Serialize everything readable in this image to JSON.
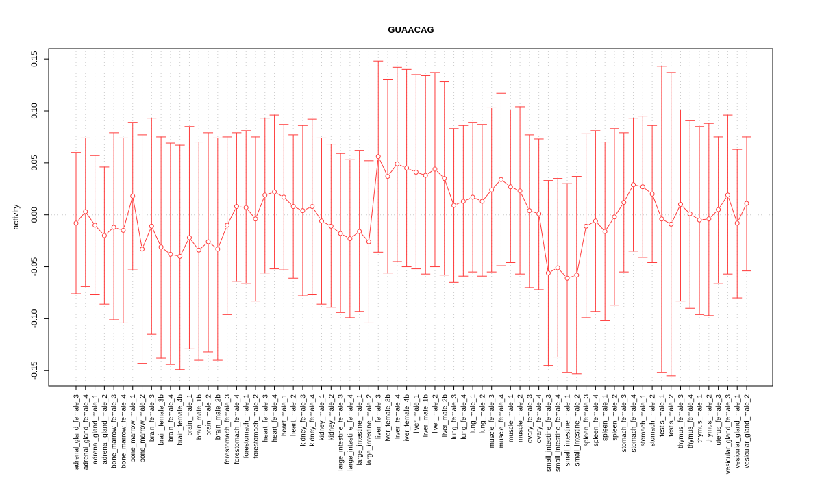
{
  "chart_data": {
    "type": "line",
    "title": "GUAACAG",
    "xlabel": "",
    "ylabel": "activity",
    "ylim": [
      -0.165,
      0.16
    ],
    "yticks": [
      -0.15,
      -0.1,
      -0.05,
      0.0,
      0.05,
      0.1,
      0.15
    ],
    "ytick_labels": [
      "-0.15",
      "-0.10",
      "-0.05",
      "0.00",
      "0.05",
      "0.10",
      "0.15"
    ],
    "grid": true,
    "legend": "none",
    "color": "#FF3B3B",
    "error_bars": true,
    "categories": [
      "adrenal_gland_female_3",
      "adrenal_gland_female_4",
      "adrenal_gland_male_1",
      "adrenal_gland_male_2",
      "bone_marrow_female_3",
      "bone_marrow_female_4",
      "bone_marrow_male_1",
      "bone_marrow_male_2",
      "brain_female_3",
      "brain_female_3b",
      "brain_female_4",
      "brain_female_4b",
      "brain_male_1",
      "brain_male_1b",
      "brain_male_2",
      "brain_male_2b",
      "forestomach_female_3",
      "forestomach_female_4",
      "forestomach_male_1",
      "forestomach_male_2",
      "heart_female_3",
      "heart_female_4",
      "heart_male_1",
      "heart_male_2",
      "kidney_female_3",
      "kidney_female_4",
      "kidney_male_1",
      "kidney_male_2",
      "large_intestine_female_3",
      "large_intestine_female_4",
      "large_intestine_male_1",
      "large_intestine_male_2",
      "liver_female_3",
      "liver_female_3b",
      "liver_female_4",
      "liver_female_4b",
      "liver_male_1",
      "liver_male_1b",
      "liver_male_2",
      "liver_male_2b",
      "lung_female_3",
      "lung_female_4",
      "lung_male_1",
      "lung_male_2",
      "muscle_female_3",
      "muscle_female_4",
      "muscle_male_1",
      "muscle_male_2",
      "ovary_female_3",
      "ovary_female_4",
      "small_intestine_female_3",
      "small_intestine_female_4",
      "small_intestine_male_1",
      "small_intestine_male_2",
      "spleen_female_3",
      "spleen_female_4",
      "spleen_male_1",
      "spleen_male_2",
      "stomach_female_3",
      "stomach_female_4",
      "stomach_male_1",
      "stomach_male_2",
      "testis_male_1",
      "testis_male_2",
      "thymus_female_3",
      "thymus_female_4",
      "thymus_male_1",
      "thymus_male_2",
      "uterus_female_3",
      "vesicular_gland_female_3",
      "vesicular_gland_male_1",
      "vesicular_gland_male_2"
    ],
    "values": [
      -0.008,
      0.003,
      -0.01,
      -0.02,
      -0.012,
      -0.015,
      0.018,
      -0.033,
      -0.011,
      -0.031,
      -0.038,
      -0.04,
      -0.022,
      -0.034,
      -0.026,
      -0.033,
      -0.01,
      0.008,
      0.007,
      -0.004,
      0.019,
      0.022,
      0.017,
      0.008,
      0.004,
      0.008,
      -0.006,
      -0.011,
      -0.018,
      -0.023,
      -0.016,
      -0.026,
      0.056,
      0.037,
      0.049,
      0.045,
      0.041,
      0.038,
      0.044,
      0.035,
      0.009,
      0.013,
      0.017,
      0.013,
      0.024,
      0.034,
      0.027,
      0.023,
      0.004,
      0.001,
      -0.056,
      -0.051,
      -0.061,
      -0.058,
      -0.011,
      -0.006,
      -0.016,
      -0.002,
      0.012,
      0.029,
      0.027,
      0.02,
      -0.004,
      -0.009,
      0.01,
      0.001,
      -0.005,
      -0.004,
      0.005,
      0.019,
      -0.008,
      0.011
    ],
    "upper": [
      0.06,
      0.074,
      0.057,
      0.046,
      0.079,
      0.074,
      0.089,
      0.077,
      0.093,
      0.075,
      0.069,
      0.067,
      0.085,
      0.07,
      0.079,
      0.074,
      0.075,
      0.079,
      0.081,
      0.075,
      0.093,
      0.096,
      0.087,
      0.077,
      0.086,
      0.092,
      0.074,
      0.068,
      0.059,
      0.053,
      0.062,
      0.052,
      0.148,
      0.13,
      0.142,
      0.14,
      0.135,
      0.134,
      0.137,
      0.128,
      0.083,
      0.086,
      0.089,
      0.087,
      0.103,
      0.117,
      0.101,
      0.104,
      0.077,
      0.073,
      0.033,
      0.035,
      0.03,
      0.037,
      0.078,
      0.081,
      0.07,
      0.083,
      0.079,
      0.093,
      0.095,
      0.086,
      0.143,
      0.137,
      0.101,
      0.091,
      0.085,
      0.088,
      0.075,
      0.096,
      0.063,
      0.075
    ],
    "lower": [
      -0.076,
      -0.069,
      -0.077,
      -0.086,
      -0.101,
      -0.104,
      -0.053,
      -0.143,
      -0.115,
      -0.138,
      -0.144,
      -0.149,
      -0.129,
      -0.14,
      -0.132,
      -0.14,
      -0.096,
      -0.064,
      -0.066,
      -0.083,
      -0.056,
      -0.052,
      -0.053,
      -0.061,
      -0.078,
      -0.077,
      -0.086,
      -0.089,
      -0.094,
      -0.099,
      -0.093,
      -0.104,
      -0.036,
      -0.056,
      -0.045,
      -0.05,
      -0.052,
      -0.057,
      -0.05,
      -0.058,
      -0.065,
      -0.059,
      -0.055,
      -0.059,
      -0.055,
      -0.049,
      -0.046,
      -0.057,
      -0.07,
      -0.072,
      -0.145,
      -0.137,
      -0.152,
      -0.153,
      -0.099,
      -0.093,
      -0.102,
      -0.087,
      -0.055,
      -0.035,
      -0.041,
      -0.046,
      -0.152,
      -0.155,
      -0.083,
      -0.09,
      -0.096,
      -0.097,
      -0.066,
      -0.057,
      -0.08,
      -0.054
    ]
  }
}
